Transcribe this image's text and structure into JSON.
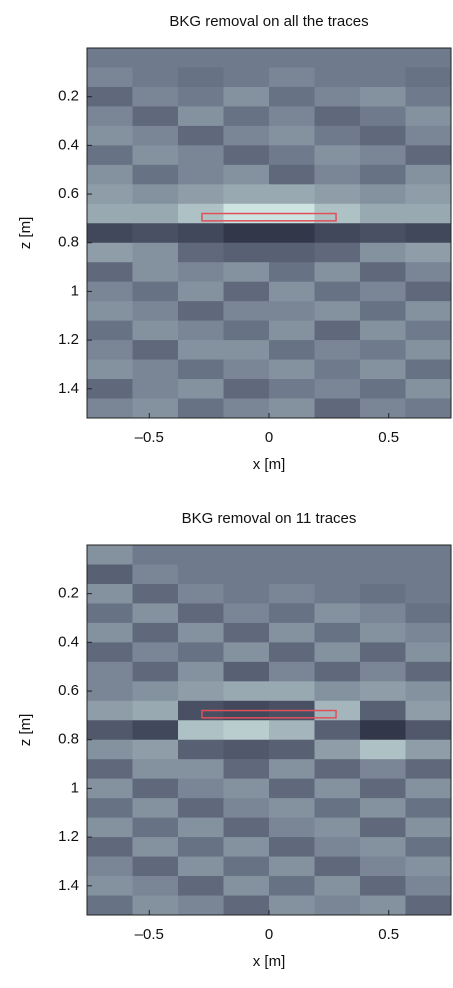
{
  "chart_data": [
    {
      "type": "heatmap",
      "title": "BKG removal on all the traces",
      "xlabel": "x [m]",
      "ylabel": "z [m]",
      "xlim": [
        -0.76,
        0.76
      ],
      "ylim": [
        0,
        1.52
      ],
      "y_inverted": true,
      "xticks": [
        {
          "value": -0.5,
          "label": "–0.5"
        },
        0,
        0.5
      ],
      "yticks": [
        0.2,
        0.4,
        0.6,
        0.8,
        1,
        1.2,
        1.4
      ],
      "xbins": [
        -0.76,
        -0.57,
        -0.38,
        -0.19,
        0,
        0.19,
        0.38,
        0.57,
        0.76
      ],
      "ybins": [
        0,
        0.08,
        0.16,
        0.24,
        0.32,
        0.4,
        0.48,
        0.56,
        0.64,
        0.72,
        0.8,
        0.88,
        0.96,
        1.04,
        1.12,
        1.2,
        1.28,
        1.36,
        1.44,
        1.52
      ],
      "colorscale": {
        "range": [
          -1,
          1
        ],
        "colors": [
          "#23263a",
          "#6f7a8c",
          "#d8f0ea"
        ]
      },
      "values": [
        [
          0,
          0,
          0,
          0,
          0,
          0,
          0,
          0
        ],
        [
          0.1,
          0,
          -0.1,
          0,
          0.1,
          0,
          0,
          -0.1
        ],
        [
          -0.2,
          0.1,
          0,
          0.2,
          -0.1,
          0.1,
          0.2,
          0
        ],
        [
          0.1,
          -0.2,
          0.2,
          -0.1,
          0.1,
          -0.2,
          0,
          0.2
        ],
        [
          0.2,
          0.1,
          -0.2,
          0.1,
          0.2,
          0,
          -0.2,
          0.1
        ],
        [
          -0.1,
          0.2,
          0.1,
          -0.2,
          0,
          0.2,
          0.1,
          -0.2
        ],
        [
          0.2,
          -0.1,
          0.1,
          0.2,
          -0.2,
          0.1,
          -0.1,
          0.2
        ],
        [
          0.3,
          0.2,
          0.3,
          0.4,
          0.4,
          0.3,
          0.2,
          0.3
        ],
        [
          0.4,
          0.4,
          0.6,
          0.9,
          0.9,
          0.6,
          0.4,
          0.4
        ],
        [
          -0.6,
          -0.5,
          -0.6,
          -0.8,
          -0.8,
          -0.6,
          -0.5,
          -0.6
        ],
        [
          0.3,
          0.2,
          -0.2,
          -0.3,
          -0.3,
          -0.2,
          0.2,
          0.3
        ],
        [
          -0.2,
          0.2,
          0.1,
          0.2,
          -0.1,
          0.2,
          -0.2,
          0.1
        ],
        [
          0.1,
          -0.1,
          0.2,
          -0.2,
          0.2,
          -0.1,
          0.1,
          -0.2
        ],
        [
          0.2,
          0.1,
          -0.2,
          0.1,
          0.1,
          0.2,
          -0.1,
          0.2
        ],
        [
          -0.1,
          0.2,
          0.1,
          -0.1,
          0.2,
          -0.2,
          0.2,
          0
        ],
        [
          0.1,
          -0.2,
          0.2,
          0.2,
          -0.1,
          0.1,
          0,
          0.2
        ],
        [
          0.2,
          0.1,
          -0.1,
          0.1,
          0.2,
          0,
          0.2,
          -0.1
        ],
        [
          -0.2,
          0.1,
          0.2,
          -0.2,
          0,
          0.1,
          -0.1,
          0.2
        ],
        [
          0.1,
          0.2,
          -0.1,
          0.1,
          0.2,
          -0.2,
          0.1,
          0
        ]
      ],
      "target": {
        "x": [
          -0.28,
          0.28
        ],
        "z": [
          0.68,
          0.71
        ],
        "color": "#e0505a"
      }
    },
    {
      "type": "heatmap",
      "title": "BKG removal on 11 traces",
      "xlabel": "x [m]",
      "ylabel": "z [m]",
      "xlim": [
        -0.76,
        0.76
      ],
      "ylim": [
        0,
        1.52
      ],
      "y_inverted": true,
      "xticks": [
        {
          "value": -0.5,
          "label": "–0.5"
        },
        0,
        0.5
      ],
      "yticks": [
        0.2,
        0.4,
        0.6,
        0.8,
        1,
        1.2,
        1.4
      ],
      "xbins": [
        -0.76,
        -0.57,
        -0.38,
        -0.19,
        0,
        0.19,
        0.38,
        0.57,
        0.76
      ],
      "ybins": [
        0,
        0.08,
        0.16,
        0.24,
        0.32,
        0.4,
        0.48,
        0.56,
        0.64,
        0.72,
        0.8,
        0.88,
        0.96,
        1.04,
        1.12,
        1.2,
        1.28,
        1.36,
        1.44,
        1.52
      ],
      "colorscale": {
        "range": [
          -1,
          1
        ],
        "colors": [
          "#23263a",
          "#6f7a8c",
          "#d8f0ea"
        ]
      },
      "values": [
        [
          0.2,
          0,
          0,
          0,
          0,
          0,
          0,
          0
        ],
        [
          -0.3,
          0.1,
          0,
          0,
          0,
          0,
          0,
          0
        ],
        [
          0.2,
          -0.2,
          0.1,
          0,
          0.1,
          0,
          -0.1,
          0
        ],
        [
          -0.1,
          0.2,
          -0.2,
          0.1,
          -0.1,
          0.2,
          0.1,
          -0.1
        ],
        [
          0.2,
          -0.2,
          0.2,
          -0.2,
          0.2,
          -0.1,
          0.2,
          0.1
        ],
        [
          -0.2,
          0.1,
          -0.1,
          0.2,
          -0.2,
          0.2,
          -0.2,
          0.2
        ],
        [
          0.1,
          -0.2,
          0.2,
          -0.3,
          0.1,
          -0.2,
          0.1,
          -0.2
        ],
        [
          0.1,
          0.2,
          0.3,
          0.4,
          0.4,
          0.2,
          0.3,
          0.2
        ],
        [
          0.3,
          0.4,
          -0.5,
          -0.6,
          -0.5,
          0.5,
          -0.3,
          0.3
        ],
        [
          -0.4,
          -0.6,
          0.6,
          0.7,
          0.5,
          -0.3,
          -0.8,
          -0.4
        ],
        [
          0.2,
          0.3,
          -0.3,
          -0.4,
          -0.3,
          0.3,
          0.6,
          0.3
        ],
        [
          -0.2,
          0.2,
          0.2,
          -0.2,
          0.2,
          -0.2,
          0.1,
          -0.2
        ],
        [
          0.2,
          -0.2,
          0.1,
          0.2,
          -0.2,
          0.2,
          -0.2,
          0.2
        ],
        [
          -0.1,
          0.2,
          -0.2,
          0.1,
          0.2,
          -0.1,
          0.2,
          -0.1
        ],
        [
          0.2,
          -0.1,
          0.2,
          -0.2,
          0.1,
          0.2,
          -0.2,
          0.2
        ],
        [
          -0.2,
          0.2,
          -0.1,
          0.2,
          -0.2,
          0.1,
          0.2,
          -0.1
        ],
        [
          0.1,
          -0.2,
          0.2,
          -0.1,
          0.2,
          -0.2,
          0.1,
          0.2
        ],
        [
          0.2,
          0.1,
          -0.2,
          0.2,
          -0.1,
          0.2,
          -0.2,
          0.1
        ],
        [
          -0.1,
          0.2,
          0.1,
          -0.2,
          0.2,
          0.1,
          0.2,
          -0.2
        ]
      ],
      "target": {
        "x": [
          -0.28,
          0.28
        ],
        "z": [
          0.68,
          0.71
        ],
        "color": "#e0505a"
      }
    }
  ]
}
